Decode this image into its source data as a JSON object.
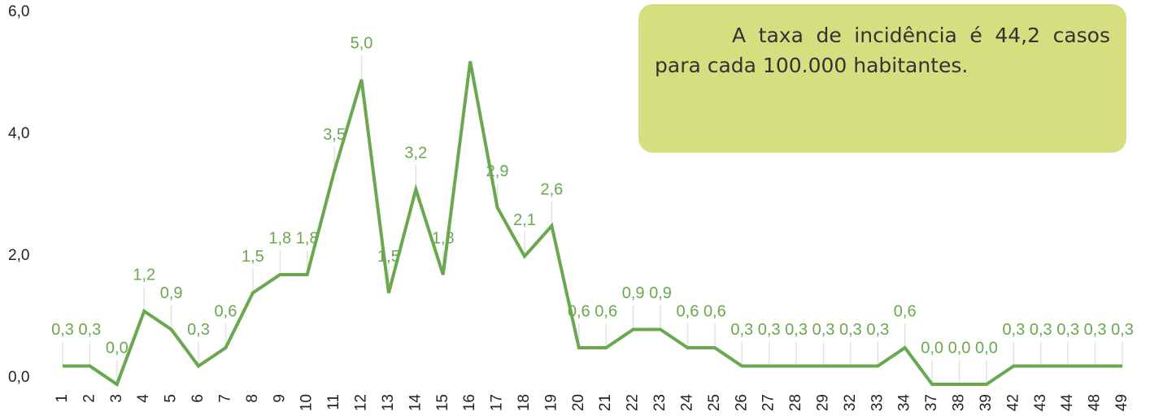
{
  "chart_data": {
    "type": "line",
    "categories": [
      "1",
      "2",
      "3",
      "4",
      "5",
      "6",
      "7",
      "8",
      "9",
      "10",
      "11",
      "12",
      "13",
      "14",
      "15",
      "16",
      "17",
      "18",
      "19",
      "20",
      "21",
      "22",
      "23",
      "24",
      "25",
      "26",
      "27",
      "28",
      "29",
      "32",
      "33",
      "34",
      "37",
      "38",
      "39",
      "42",
      "43",
      "44",
      "48",
      "49"
    ],
    "series": [
      {
        "color": "#6aa84f",
        "values": [
          0.3,
          0.3,
          0.0,
          1.2,
          0.9,
          0.3,
          0.6,
          1.5,
          1.8,
          1.8,
          3.5,
          5.0,
          1.5,
          3.2,
          1.8,
          5.3,
          2.9,
          2.1,
          2.6,
          0.6,
          0.6,
          0.9,
          0.9,
          0.6,
          0.6,
          0.3,
          0.3,
          0.3,
          0.3,
          0.3,
          0.3,
          0.6,
          0.0,
          0.0,
          0.0,
          0.3,
          0.3,
          0.3,
          0.3,
          0.3
        ],
        "value_labels": [
          "0,3",
          "0,3",
          "0,0",
          "1,2",
          "0,9",
          "0,3",
          "0,6",
          "1,5",
          "1,8",
          "1,8",
          "3,5",
          "5,0",
          "1,5",
          "3,2",
          "1,8",
          null,
          "2,9",
          "2,1",
          "2,6",
          "0,6",
          "0,6",
          "0,9",
          "0,9",
          "0,6",
          "0,6",
          "0,3",
          "0,3",
          "0,3",
          "0,3",
          "0,3",
          "0,3",
          "0,6",
          "0,0",
          "0,0",
          "0,0",
          "0,3",
          "0,3",
          "0,3",
          "0,3",
          "0,3"
        ]
      }
    ],
    "ylim": [
      0,
      6
    ],
    "yticks": [
      {
        "value": 0,
        "label": "0,0"
      },
      {
        "value": 2,
        "label": "2,0"
      },
      {
        "value": 4,
        "label": "4,0"
      },
      {
        "value": 6,
        "label": "6,0"
      }
    ],
    "annotation": "A taxa de incidência é 44,2 casos para cada 100.000 habitantes."
  }
}
